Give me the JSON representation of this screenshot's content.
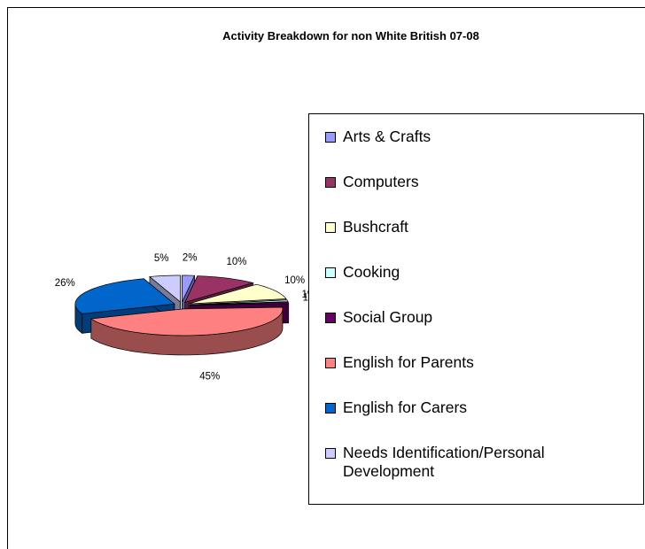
{
  "chart_data": {
    "type": "pie3d",
    "title": "Activity Breakdown for non White British 07-08",
    "categories": [
      "Arts & Crafts",
      "Computers",
      "Bushcraft",
      "Cooking",
      "Social Group",
      "English for Parents",
      "English for Carers",
      "Needs Identification/Personal Development"
    ],
    "values": [
      2,
      10,
      10,
      1,
      1,
      45,
      26,
      5
    ],
    "value_labels": [
      "2%",
      "10%",
      "10%",
      "1%",
      "1%",
      "45%",
      "26%",
      "5%"
    ],
    "colors": [
      "#9999ff",
      "#993366",
      "#ffffcc",
      "#ccffff",
      "#660066",
      "#ff8080",
      "#0066cc",
      "#ccccff"
    ]
  }
}
